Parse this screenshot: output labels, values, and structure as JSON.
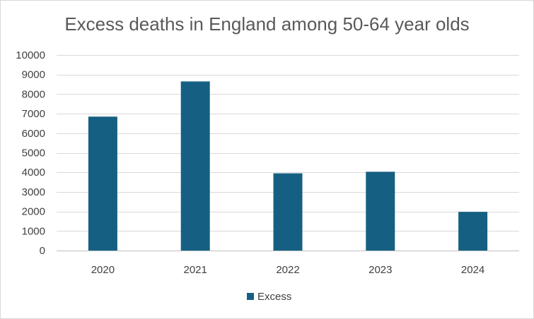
{
  "chart_data": {
    "type": "bar",
    "title": "Excess deaths in England among 50-64 year olds",
    "categories": [
      "2020",
      "2021",
      "2022",
      "2023",
      "2024"
    ],
    "series": [
      {
        "name": "Excess",
        "values": [
          6850,
          8650,
          3950,
          4030,
          1980
        ],
        "color": "#156082"
      }
    ],
    "ylim": [
      0,
      10000
    ],
    "yticks": [
      0,
      1000,
      2000,
      3000,
      4000,
      5000,
      6000,
      7000,
      8000,
      9000,
      10000
    ],
    "grid": true,
    "legend": "bottom"
  }
}
